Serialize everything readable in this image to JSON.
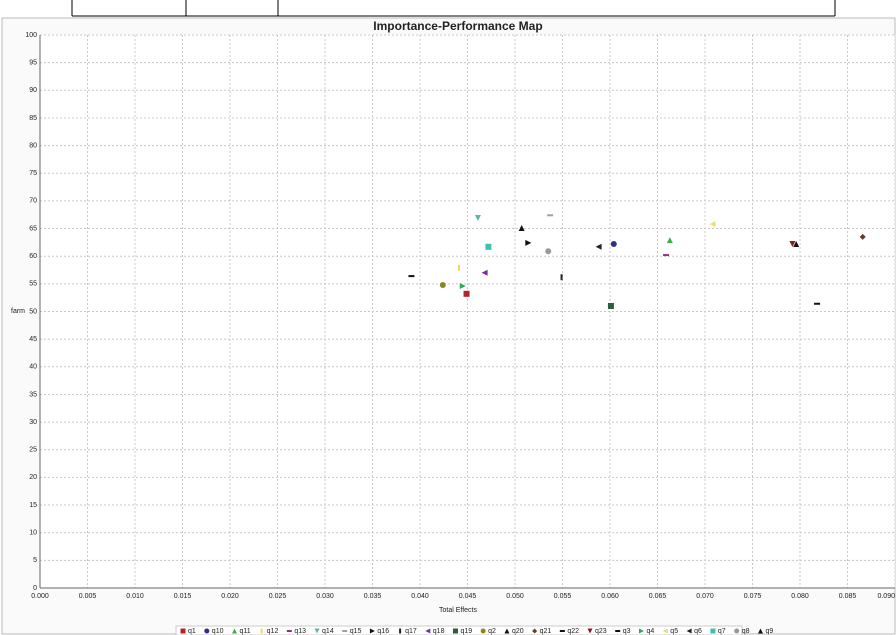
{
  "chart_data": {
    "type": "scatter",
    "title": "Importance-Performance Map",
    "xlabel": "Total Effects",
    "ylabel": "farm",
    "xlim": [
      0,
      0.09
    ],
    "ylim": [
      0,
      100
    ],
    "xticks": [
      {
        "value": 0,
        "label": "0.000"
      },
      0.005,
      {
        "value": 0.01,
        "label": "0.010"
      },
      0.015,
      {
        "value": 0.02,
        "label": "0.020"
      },
      0.025,
      {
        "value": 0.03,
        "label": "0.030"
      },
      0.035,
      {
        "value": 0.04,
        "label": "0.040"
      },
      0.045,
      {
        "value": 0.05,
        "label": "0.050"
      },
      0.055,
      {
        "value": 0.06,
        "label": "0.060"
      },
      0.065,
      {
        "value": 0.07,
        "label": "0.070"
      },
      0.075,
      {
        "value": 0.08,
        "label": "0.080"
      },
      0.085,
      {
        "value": 0.09,
        "label": "0.090"
      }
    ],
    "yticks": [
      0,
      5,
      10,
      15,
      20,
      25,
      30,
      35,
      40,
      45,
      50,
      55,
      60,
      65,
      70,
      75,
      80,
      85,
      90,
      95,
      100
    ],
    "grid": true,
    "series": [
      {
        "name": "q1",
        "color": "#b0242a",
        "marker": "square",
        "x": [
          0.0449
        ],
        "values": [
          53.2
        ]
      },
      {
        "name": "q10",
        "color": "#2e2e8f",
        "marker": "circle",
        "x": [
          0.0604
        ],
        "values": [
          62.2
        ]
      },
      {
        "name": "q11",
        "color": "#3cb043",
        "marker": "triangle",
        "x": [
          0.0663
        ],
        "values": [
          62.9
        ]
      },
      {
        "name": "q12",
        "color": "#e8dc50",
        "marker": "bar",
        "x": [
          0.0441
        ],
        "values": [
          57.9
        ]
      },
      {
        "name": "q13",
        "color": "#9b2d7a",
        "marker": "dash",
        "x": [
          0.0659
        ],
        "values": [
          60.2
        ]
      },
      {
        "name": "q14",
        "color": "#5fb3a8",
        "marker": "triangle-down",
        "x": [
          0.0461
        ],
        "values": [
          66.9
        ]
      },
      {
        "name": "q15",
        "color": "#a0a0a0",
        "marker": "dash",
        "x": [
          0.0537
        ],
        "values": [
          67.4
        ]
      },
      {
        "name": "q16",
        "color": "#111111",
        "marker": "triangle-right",
        "x": [
          0.0514
        ],
        "values": [
          62.4
        ]
      },
      {
        "name": "q17",
        "color": "#222222",
        "marker": "bar",
        "x": [
          0.0549
        ],
        "values": [
          56.2
        ]
      },
      {
        "name": "q18",
        "color": "#7a2ea0",
        "marker": "triangle-left",
        "x": [
          0.0468
        ],
        "values": [
          57.0
        ]
      },
      {
        "name": "q19",
        "color": "#2e5e3e",
        "marker": "square",
        "x": [
          0.0601
        ],
        "values": [
          51.0
        ]
      },
      {
        "name": "q2",
        "color": "#8a8a20",
        "marker": "circle",
        "x": [
          0.0424
        ],
        "values": [
          54.8
        ]
      },
      {
        "name": "q20",
        "color": "#111111",
        "marker": "triangle",
        "x": [
          0.0507
        ],
        "values": [
          65.1
        ]
      },
      {
        "name": "q21",
        "color": "#6b3a2e",
        "marker": "diamond",
        "x": [
          0.0866
        ],
        "values": [
          63.5
        ]
      },
      {
        "name": "q22",
        "color": "#111111",
        "marker": "dash",
        "x": [
          0.0818
        ],
        "values": [
          51.4
        ]
      },
      {
        "name": "q23",
        "color": "#8b1a2b",
        "marker": "triangle-down",
        "x": [
          0.0792
        ],
        "values": [
          62.2
        ]
      },
      {
        "name": "q3",
        "color": "#111111",
        "marker": "dash",
        "x": [
          0.0391
        ],
        "values": [
          56.4
        ]
      },
      {
        "name": "q4",
        "color": "#2eaa55",
        "marker": "triangle-right",
        "x": [
          0.0445
        ],
        "values": [
          54.6
        ]
      },
      {
        "name": "q5",
        "color": "#e8e070",
        "marker": "triangle-left",
        "x": [
          0.0708
        ],
        "values": [
          65.8
        ]
      },
      {
        "name": "q6",
        "color": "#222222",
        "marker": "triangle-left",
        "x": [
          0.0588
        ],
        "values": [
          61.7
        ]
      },
      {
        "name": "q7",
        "color": "#40c0b0",
        "marker": "square",
        "x": [
          0.0472
        ],
        "values": [
          61.7
        ]
      },
      {
        "name": "q8",
        "color": "#999999",
        "marker": "circle",
        "x": [
          0.0535
        ],
        "values": [
          60.9
        ]
      },
      {
        "name": "q9",
        "color": "#111111",
        "marker": "triangle",
        "x": [
          0.0796
        ],
        "values": [
          62.2
        ]
      }
    ]
  }
}
